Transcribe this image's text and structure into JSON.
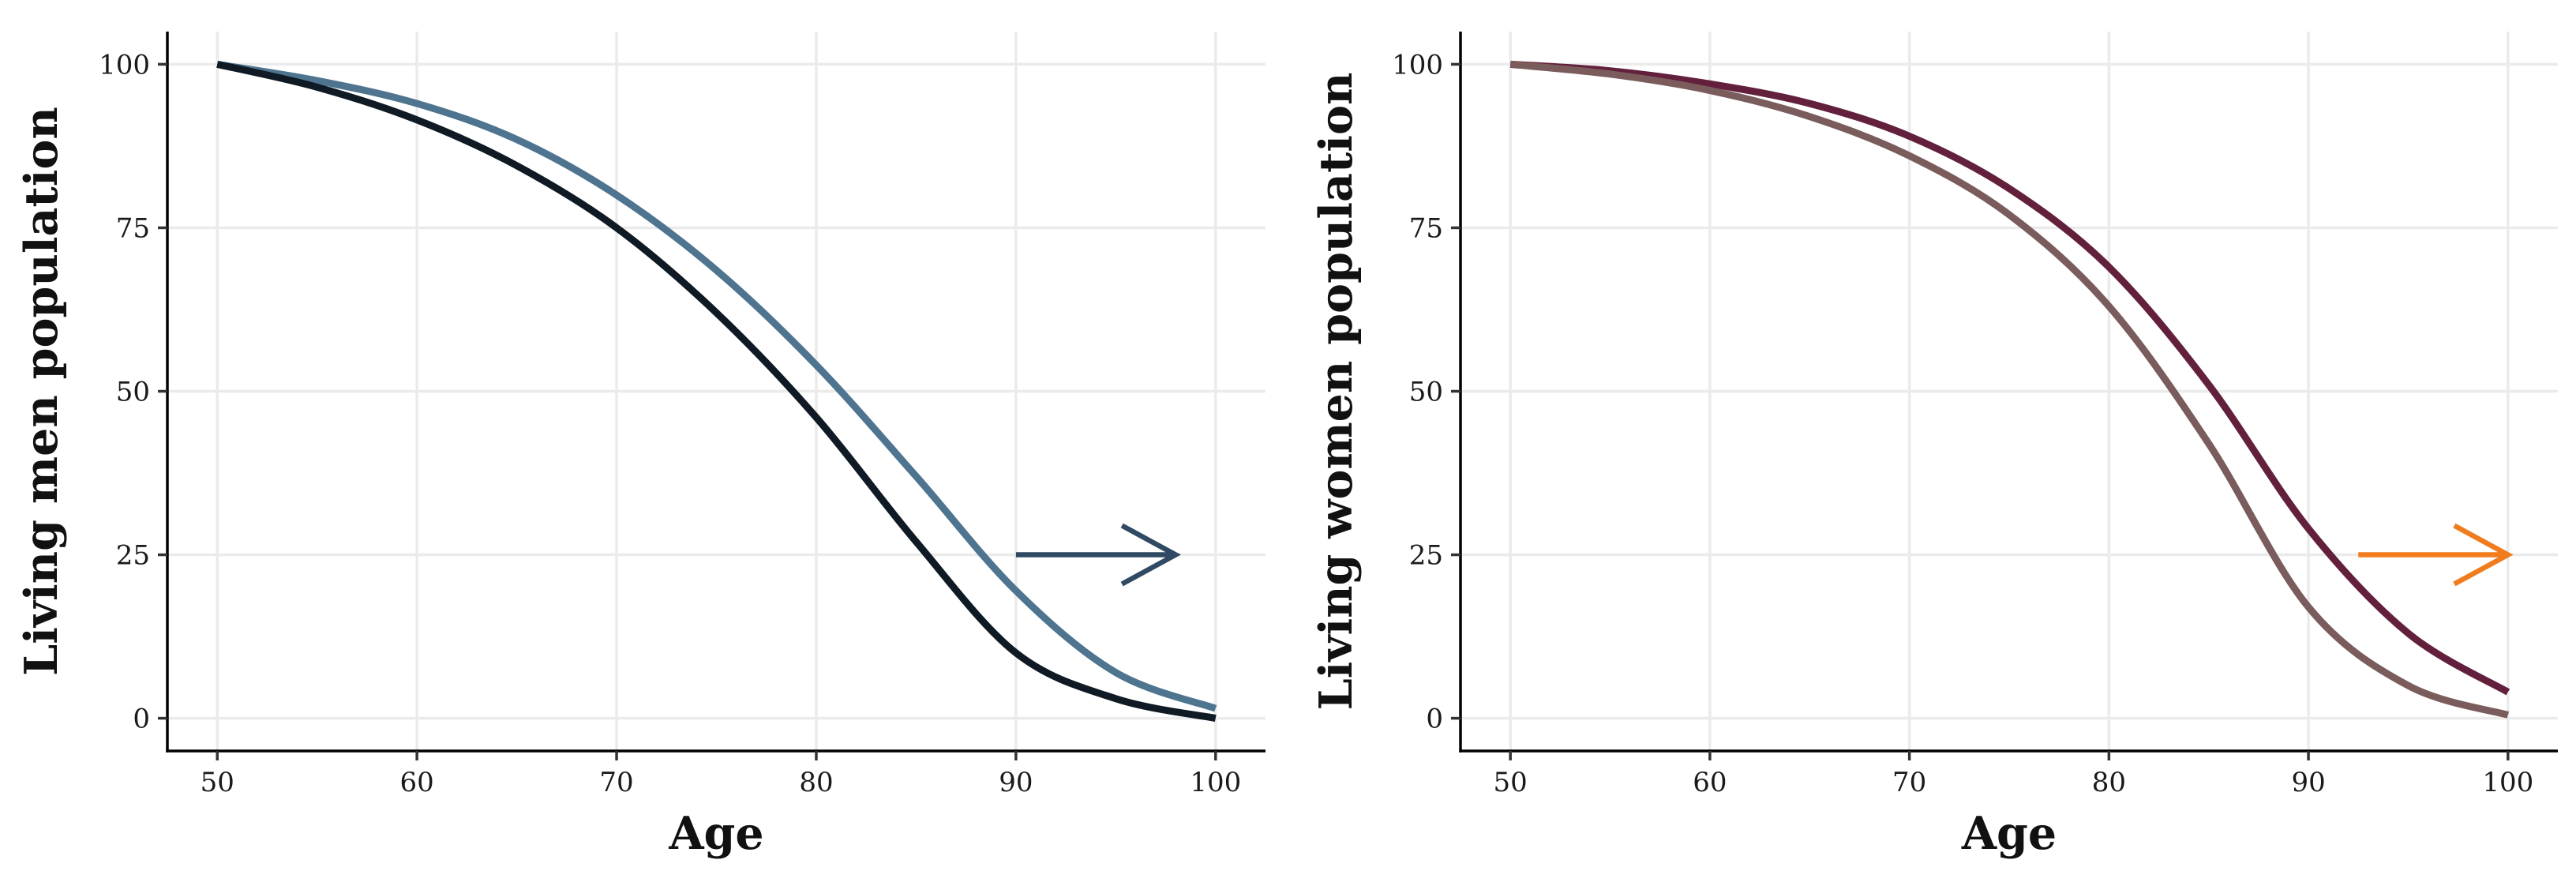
{
  "chart_data": [
    {
      "type": "line",
      "xlabel": "Age",
      "ylabel": "Living men population",
      "xlim": [
        47.5,
        102.5
      ],
      "ylim": [
        -5,
        105
      ],
      "xticks": [
        50,
        60,
        70,
        80,
        90,
        100
      ],
      "yticks": [
        0,
        25,
        50,
        75,
        100
      ],
      "grid": true,
      "series": [
        {
          "color": "#4e7490",
          "x": [
            50,
            55,
            60,
            65,
            70,
            75,
            80,
            85,
            90,
            95,
            100
          ],
          "values": [
            100,
            97.5,
            94,
            88.5,
            80,
            68.5,
            54,
            37,
            19.5,
            7,
            1.5
          ]
        },
        {
          "color": "#0f1a24",
          "x": [
            50,
            55,
            60,
            65,
            70,
            75,
            80,
            85,
            90,
            95,
            100
          ],
          "values": [
            100,
            96.5,
            91.5,
            84.5,
            75,
            62,
            46,
            27,
            10,
            3,
            0
          ]
        }
      ],
      "annotations": [
        {
          "type": "arrow",
          "color": "#2f4a62",
          "from": [
            90,
            25
          ],
          "to": [
            98,
            25
          ]
        }
      ]
    },
    {
      "type": "line",
      "xlabel": "Age",
      "ylabel": "Living women population",
      "xlim": [
        47.5,
        102.5
      ],
      "ylim": [
        -5,
        105
      ],
      "xticks": [
        50,
        60,
        70,
        80,
        90,
        100
      ],
      "yticks": [
        0,
        25,
        50,
        75,
        100
      ],
      "grid": true,
      "series": [
        {
          "color": "#62203c",
          "x": [
            50,
            55,
            60,
            65,
            70,
            75,
            80,
            85,
            90,
            95,
            100
          ],
          "values": [
            100,
            99,
            97,
            94,
            89,
            81,
            69,
            51,
            29,
            13,
            4
          ]
        },
        {
          "color": "#7a5c5c",
          "x": [
            50,
            55,
            60,
            65,
            70,
            75,
            80,
            85,
            90,
            95,
            100
          ],
          "values": [
            100,
            98.5,
            96,
            92,
            86,
            77,
            63,
            42,
            17,
            5,
            0.5
          ]
        }
      ],
      "annotations": [
        {
          "type": "arrow",
          "color": "#f07c1e",
          "from": [
            92.5,
            25
          ],
          "to": [
            100,
            25
          ]
        }
      ]
    }
  ]
}
